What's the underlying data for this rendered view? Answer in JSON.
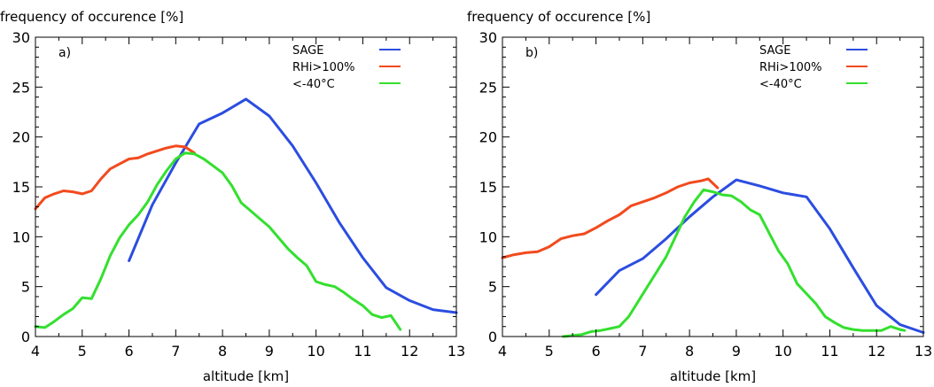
{
  "chart_data": [
    {
      "type": "line",
      "panel_label": "a)",
      "title": "frequency of occurence [%]",
      "xlabel": "altitude [km]",
      "ylabel": "",
      "xlim": [
        4,
        13
      ],
      "ylim": [
        0,
        30
      ],
      "xticks": [
        "4",
        "5",
        "6",
        "7",
        "8",
        "9",
        "10",
        "11",
        "12",
        "13"
      ],
      "yticks": [
        "0",
        "5",
        "10",
        "15",
        "20",
        "25",
        "30"
      ],
      "legend_position": "top-right",
      "series": [
        {
          "name": "SAGE",
          "color": "#2b4de0",
          "x": [
            6.0,
            6.5,
            7.0,
            7.5,
            8.0,
            8.5,
            9.0,
            9.5,
            10.0,
            10.5,
            11.0,
            11.5,
            12.0,
            12.5,
            13.0
          ],
          "y": [
            7.6,
            13.2,
            17.4,
            21.3,
            22.4,
            23.8,
            22.1,
            19.1,
            15.4,
            11.4,
            7.9,
            4.9,
            3.6,
            2.7,
            2.4
          ]
        },
        {
          "name": "RHi>100%",
          "color": "#f24a1e",
          "x": [
            4.0,
            4.2,
            4.4,
            4.6,
            4.8,
            5.0,
            5.2,
            5.4,
            5.6,
            5.8,
            6.0,
            6.2,
            6.4,
            6.6,
            6.8,
            7.0,
            7.2,
            7.4
          ],
          "y": [
            12.8,
            13.9,
            14.3,
            14.6,
            14.5,
            14.3,
            14.6,
            15.8,
            16.8,
            17.3,
            17.8,
            17.9,
            18.3,
            18.6,
            18.9,
            19.1,
            19.0,
            18.4
          ]
        },
        {
          "name": "<-40°C",
          "color": "#33e02e",
          "x": [
            4.0,
            4.2,
            4.4,
            4.6,
            4.8,
            5.0,
            5.2,
            5.4,
            5.6,
            5.8,
            6.0,
            6.2,
            6.4,
            6.6,
            6.8,
            7.0,
            7.2,
            7.4,
            7.6,
            7.8,
            8.0,
            8.2,
            8.4,
            8.6,
            8.8,
            9.0,
            9.2,
            9.4,
            9.6,
            9.8,
            10.0,
            10.2,
            10.4,
            10.6,
            10.8,
            11.0,
            11.2,
            11.4,
            11.6,
            11.8
          ],
          "y": [
            1.0,
            0.9,
            1.5,
            2.2,
            2.8,
            3.9,
            3.8,
            5.8,
            8.1,
            9.9,
            11.2,
            12.2,
            13.5,
            15.2,
            16.6,
            17.8,
            18.4,
            18.3,
            17.8,
            17.1,
            16.4,
            15.1,
            13.4,
            12.6,
            11.8,
            11.0,
            9.9,
            8.8,
            7.9,
            7.1,
            5.5,
            5.2,
            5.0,
            4.4,
            3.7,
            3.1,
            2.2,
            1.9,
            2.1,
            0.7
          ]
        }
      ]
    },
    {
      "type": "line",
      "panel_label": "b)",
      "title": "frequency of occurence [%]",
      "xlabel": "altitude [km]",
      "ylabel": "",
      "xlim": [
        4,
        13
      ],
      "ylim": [
        0,
        30
      ],
      "xticks": [
        "4",
        "5",
        "6",
        "7",
        "8",
        "9",
        "10",
        "11",
        "12",
        "13"
      ],
      "yticks": [
        "0",
        "5",
        "10",
        "15",
        "20",
        "25",
        "30"
      ],
      "legend_position": "top-right",
      "series": [
        {
          "name": "SAGE",
          "color": "#2b4de0",
          "x": [
            6.0,
            6.5,
            7.0,
            7.5,
            8.0,
            8.5,
            9.0,
            9.5,
            10.0,
            10.5,
            11.0,
            11.5,
            12.0,
            12.5,
            13.0
          ],
          "y": [
            4.2,
            6.6,
            7.8,
            9.8,
            12.0,
            14.0,
            15.7,
            15.1,
            14.4,
            14.0,
            10.8,
            6.9,
            3.1,
            1.2,
            0.4
          ]
        },
        {
          "name": "RHi>100%",
          "color": "#f24a1e",
          "x": [
            4.0,
            4.25,
            4.5,
            4.75,
            5.0,
            5.25,
            5.5,
            5.75,
            6.0,
            6.25,
            6.5,
            6.75,
            7.0,
            7.25,
            7.5,
            7.75,
            8.0,
            8.25,
            8.4,
            8.6
          ],
          "y": [
            7.9,
            8.2,
            8.4,
            8.5,
            9.0,
            9.8,
            10.1,
            10.3,
            10.9,
            11.6,
            12.2,
            13.1,
            13.5,
            13.9,
            14.4,
            15.0,
            15.4,
            15.6,
            15.8,
            14.9
          ]
        },
        {
          "name": "<-40°C",
          "color": "#33e02e",
          "x": [
            5.3,
            5.5,
            5.7,
            5.9,
            6.1,
            6.3,
            6.5,
            6.7,
            6.9,
            7.1,
            7.3,
            7.5,
            7.7,
            7.9,
            8.1,
            8.3,
            8.5,
            8.7,
            8.9,
            9.1,
            9.3,
            9.5,
            9.7,
            9.9,
            10.1,
            10.3,
            10.5,
            10.7,
            10.9,
            11.1,
            11.3,
            11.5,
            11.7,
            11.9,
            12.1,
            12.3,
            12.5,
            12.6
          ],
          "y": [
            0.0,
            0.1,
            0.2,
            0.5,
            0.6,
            0.8,
            1.0,
            2.0,
            3.5,
            5.0,
            6.5,
            8.0,
            10.0,
            12.0,
            13.5,
            14.7,
            14.5,
            14.2,
            14.1,
            13.5,
            12.7,
            12.2,
            10.4,
            8.6,
            7.3,
            5.3,
            4.3,
            3.3,
            2.0,
            1.4,
            0.9,
            0.7,
            0.6,
            0.6,
            0.6,
            1.0,
            0.7,
            0.6
          ]
        }
      ]
    }
  ]
}
